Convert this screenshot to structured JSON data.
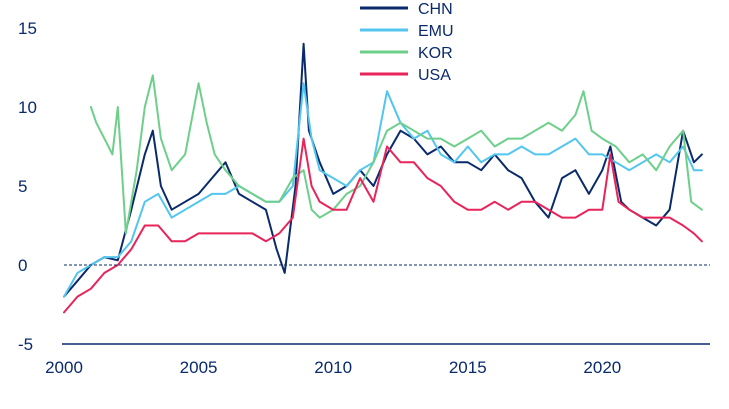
{
  "chart_data": {
    "type": "line",
    "title": "",
    "xlabel": "",
    "ylabel": "",
    "xlim": [
      2000.0,
      2024.0
    ],
    "ylim": [
      -5,
      15
    ],
    "x_ticks": [
      2000,
      2005,
      2010,
      2015,
      2020
    ],
    "y_ticks": [
      -5,
      0,
      5,
      10,
      15
    ],
    "zero_line": true,
    "grid": false,
    "legend_position": "top-center",
    "series": [
      {
        "name": "CHN",
        "color": "#0a2a6b",
        "x": [
          2000.0,
          2000.5,
          2001.0,
          2001.5,
          2002.0,
          2002.5,
          2003.0,
          2003.3,
          2003.6,
          2004.0,
          2004.5,
          2005.0,
          2005.5,
          2006.0,
          2006.5,
          2007.0,
          2007.5,
          2007.9,
          2008.2,
          2008.6,
          2008.9,
          2009.1,
          2009.5,
          2010.0,
          2010.5,
          2011.0,
          2011.5,
          2012.0,
          2012.5,
          2013.0,
          2013.5,
          2014.0,
          2014.5,
          2015.0,
          2015.5,
          2016.0,
          2016.5,
          2017.0,
          2017.5,
          2018.0,
          2018.5,
          2019.0,
          2019.5,
          2020.0,
          2020.3,
          2020.7,
          2021.0,
          2021.5,
          2022.0,
          2022.5,
          2023.0,
          2023.4,
          2023.7
        ],
        "y": [
          -2.0,
          -1.0,
          0.0,
          0.5,
          0.3,
          3.5,
          7.0,
          8.5,
          5.0,
          3.5,
          4.0,
          4.5,
          5.5,
          6.5,
          4.5,
          4.0,
          3.5,
          1.0,
          -0.5,
          5.0,
          14.0,
          8.5,
          6.5,
          4.5,
          5.0,
          6.0,
          5.0,
          7.0,
          8.5,
          8.0,
          7.0,
          7.5,
          6.5,
          6.5,
          6.0,
          7.0,
          6.0,
          5.5,
          4.0,
          3.0,
          5.5,
          6.0,
          4.5,
          6.0,
          7.5,
          4.0,
          3.5,
          3.0,
          2.5,
          3.5,
          8.5,
          6.5,
          7.0
        ]
      },
      {
        "name": "EMU",
        "color": "#53c6ef",
        "x": [
          2000.0,
          2000.5,
          2001.0,
          2001.5,
          2002.0,
          2002.5,
          2003.0,
          2003.5,
          2004.0,
          2004.5,
          2005.0,
          2005.5,
          2006.0,
          2006.5,
          2007.0,
          2007.5,
          2008.0,
          2008.5,
          2008.9,
          2009.2,
          2009.5,
          2010.0,
          2010.5,
          2011.0,
          2011.5,
          2012.0,
          2012.5,
          2013.0,
          2013.5,
          2014.0,
          2014.5,
          2015.0,
          2015.5,
          2016.0,
          2016.5,
          2017.0,
          2017.5,
          2018.0,
          2018.5,
          2019.0,
          2019.5,
          2020.0,
          2020.5,
          2021.0,
          2021.5,
          2022.0,
          2022.5,
          2023.0,
          2023.4,
          2023.7
        ],
        "y": [
          -2.0,
          -0.5,
          0.0,
          0.5,
          0.5,
          1.5,
          4.0,
          4.5,
          3.0,
          3.5,
          4.0,
          4.5,
          4.5,
          5.0,
          4.5,
          4.0,
          4.0,
          5.0,
          11.5,
          8.0,
          6.0,
          5.5,
          5.0,
          6.0,
          6.5,
          11.0,
          9.0,
          8.0,
          8.5,
          7.0,
          6.5,
          7.5,
          6.5,
          7.0,
          7.0,
          7.5,
          7.0,
          7.0,
          7.5,
          8.0,
          7.0,
          7.0,
          6.5,
          6.0,
          6.5,
          7.0,
          6.5,
          7.5,
          6.0,
          6.0
        ]
      },
      {
        "name": "KOR",
        "color": "#6ecf8b",
        "x": [
          2001.0,
          2001.2,
          2001.5,
          2001.8,
          2002.0,
          2002.3,
          2002.5,
          2002.7,
          2003.0,
          2003.3,
          2003.6,
          2004.0,
          2004.5,
          2005.0,
          2005.3,
          2005.6,
          2006.0,
          2006.5,
          2007.0,
          2007.5,
          2008.0,
          2008.5,
          2008.9,
          2009.2,
          2009.5,
          2010.0,
          2010.5,
          2011.0,
          2011.5,
          2012.0,
          2012.5,
          2013.0,
          2013.5,
          2014.0,
          2014.5,
          2015.0,
          2015.5,
          2016.0,
          2016.5,
          2017.0,
          2017.5,
          2018.0,
          2018.5,
          2019.0,
          2019.3,
          2019.6,
          2020.0,
          2020.5,
          2021.0,
          2021.5,
          2022.0,
          2022.5,
          2023.0,
          2023.3,
          2023.7
        ],
        "y": [
          10.0,
          9.0,
          8.0,
          7.0,
          10.0,
          2.0,
          4.0,
          6.0,
          10.0,
          12.0,
          8.0,
          6.0,
          7.0,
          11.5,
          9.0,
          7.0,
          6.0,
          5.0,
          4.5,
          4.0,
          4.0,
          5.5,
          6.0,
          3.5,
          3.0,
          3.5,
          4.5,
          5.0,
          6.5,
          8.5,
          9.0,
          8.5,
          8.0,
          8.0,
          7.5,
          8.0,
          8.5,
          7.5,
          8.0,
          8.0,
          8.5,
          9.0,
          8.5,
          9.5,
          11.0,
          8.5,
          8.0,
          7.5,
          6.5,
          7.0,
          6.0,
          7.5,
          8.5,
          4.0,
          3.5
        ]
      },
      {
        "name": "USA",
        "color": "#e8245a",
        "x": [
          2000.0,
          2000.5,
          2001.0,
          2001.5,
          2002.0,
          2002.5,
          2003.0,
          2003.5,
          2004.0,
          2004.5,
          2005.0,
          2005.5,
          2006.0,
          2006.5,
          2007.0,
          2007.5,
          2008.0,
          2008.5,
          2008.9,
          2009.2,
          2009.5,
          2010.0,
          2010.5,
          2011.0,
          2011.5,
          2012.0,
          2012.5,
          2013.0,
          2013.5,
          2014.0,
          2014.5,
          2015.0,
          2015.5,
          2016.0,
          2016.5,
          2017.0,
          2017.5,
          2018.0,
          2018.5,
          2019.0,
          2019.5,
          2020.0,
          2020.3,
          2020.6,
          2021.0,
          2021.5,
          2022.0,
          2022.5,
          2023.0,
          2023.4,
          2023.7
        ],
        "y": [
          -3.0,
          -2.0,
          -1.5,
          -0.5,
          0.0,
          1.0,
          2.5,
          2.5,
          1.5,
          1.5,
          2.0,
          2.0,
          2.0,
          2.0,
          2.0,
          1.5,
          2.0,
          3.0,
          8.0,
          5.0,
          4.0,
          3.5,
          3.5,
          5.5,
          4.0,
          7.5,
          6.5,
          6.5,
          5.5,
          5.0,
          4.0,
          3.5,
          3.5,
          4.0,
          3.5,
          4.0,
          4.0,
          3.5,
          3.0,
          3.0,
          3.5,
          3.5,
          7.0,
          4.0,
          3.5,
          3.0,
          3.0,
          3.0,
          2.5,
          2.0,
          1.5
        ]
      }
    ]
  }
}
